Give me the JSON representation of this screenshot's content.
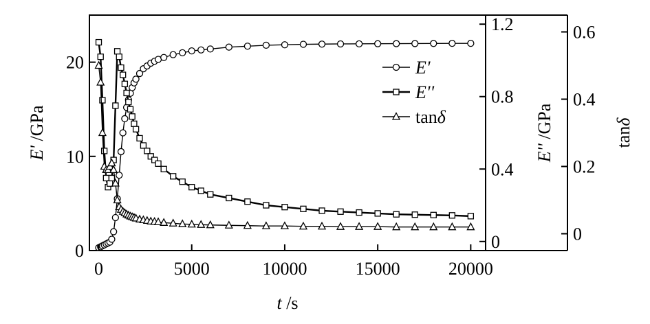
{
  "chart_data": {
    "type": "line",
    "x": [
      0,
      100,
      200,
      300,
      400,
      500,
      600,
      700,
      800,
      900,
      1000,
      1100,
      1200,
      1300,
      1400,
      1500,
      1600,
      1700,
      1800,
      1900,
      2000,
      2200,
      2400,
      2600,
      2800,
      3000,
      3200,
      3500,
      4000,
      4500,
      5000,
      5500,
      6000,
      7000,
      8000,
      9000,
      10000,
      11000,
      12000,
      13000,
      14000,
      15000,
      16000,
      17000,
      18000,
      19000,
      20000
    ],
    "x_axis": {
      "label_italic": "t",
      "label_unit": " /s",
      "range": [
        -500,
        20800
      ],
      "ticks": [
        0,
        5000,
        10000,
        15000,
        20000
      ],
      "tick_labels": [
        "0",
        "5000",
        "10000",
        "15000",
        "20000"
      ]
    },
    "y_axes": [
      {
        "id": "left",
        "label_italic": "E'",
        "label_unit": " /GPa",
        "range": [
          0,
          25
        ],
        "ticks": [
          0,
          10,
          20
        ],
        "tick_labels": [
          "0",
          "10",
          "20"
        ]
      },
      {
        "id": "right1",
        "label_italic": "E''",
        "label_unit": " /GPa",
        "range": [
          -0.05,
          1.25
        ],
        "ticks": [
          0,
          0.4,
          0.8,
          1.2
        ],
        "tick_labels": [
          "0",
          "0.4",
          "0.8",
          "1.2"
        ]
      },
      {
        "id": "right2",
        "label_prefix": "tan",
        "label_italic": "δ",
        "range": [
          -0.05,
          0.65
        ],
        "ticks": [
          0,
          0.2,
          0.4,
          0.6
        ],
        "tick_labels": [
          "0",
          "0.2",
          "0.4",
          "0.6"
        ]
      }
    ],
    "series": [
      {
        "name": "E'",
        "axis": "left",
        "marker": "circle",
        "values": [
          0.3,
          0.4,
          0.5,
          0.6,
          0.7,
          0.8,
          0.9,
          1.2,
          2.0,
          3.5,
          5.5,
          8.0,
          10.5,
          12.5,
          14.0,
          15.2,
          16.0,
          16.7,
          17.3,
          17.8,
          18.2,
          18.8,
          19.3,
          19.6,
          19.9,
          20.1,
          20.3,
          20.5,
          20.8,
          21.0,
          21.2,
          21.3,
          21.4,
          21.6,
          21.7,
          21.8,
          21.85,
          21.9,
          21.92,
          21.94,
          21.95,
          21.96,
          21.97,
          21.98,
          21.99,
          22.0,
          22.0
        ]
      },
      {
        "name": "E''",
        "axis": "right1",
        "marker": "square",
        "values": [
          1.1,
          1.02,
          0.78,
          0.5,
          0.35,
          0.3,
          0.32,
          0.35,
          0.45,
          0.75,
          1.05,
          1.02,
          0.96,
          0.92,
          0.87,
          0.82,
          0.77,
          0.73,
          0.69,
          0.65,
          0.62,
          0.57,
          0.53,
          0.5,
          0.47,
          0.45,
          0.43,
          0.4,
          0.36,
          0.33,
          0.3,
          0.28,
          0.26,
          0.24,
          0.22,
          0.2,
          0.19,
          0.18,
          0.17,
          0.165,
          0.16,
          0.155,
          0.15,
          0.148,
          0.146,
          0.144,
          0.14
        ]
      },
      {
        "name": "tan",
        "name_italic": "δ",
        "axis": "right2",
        "marker": "triangle",
        "values": [
          0.5,
          0.45,
          0.3,
          0.2,
          0.19,
          0.19,
          0.2,
          0.21,
          0.19,
          0.15,
          0.1,
          0.08,
          0.072,
          0.066,
          0.062,
          0.058,
          0.055,
          0.052,
          0.05,
          0.048,
          0.046,
          0.043,
          0.041,
          0.039,
          0.037,
          0.036,
          0.035,
          0.033,
          0.031,
          0.029,
          0.028,
          0.027,
          0.026,
          0.025,
          0.024,
          0.023,
          0.023,
          0.022,
          0.022,
          0.021,
          0.021,
          0.021,
          0.02,
          0.02,
          0.02,
          0.02,
          0.02
        ]
      }
    ],
    "legend": {
      "position": "top-right-inside"
    },
    "grid": false
  }
}
